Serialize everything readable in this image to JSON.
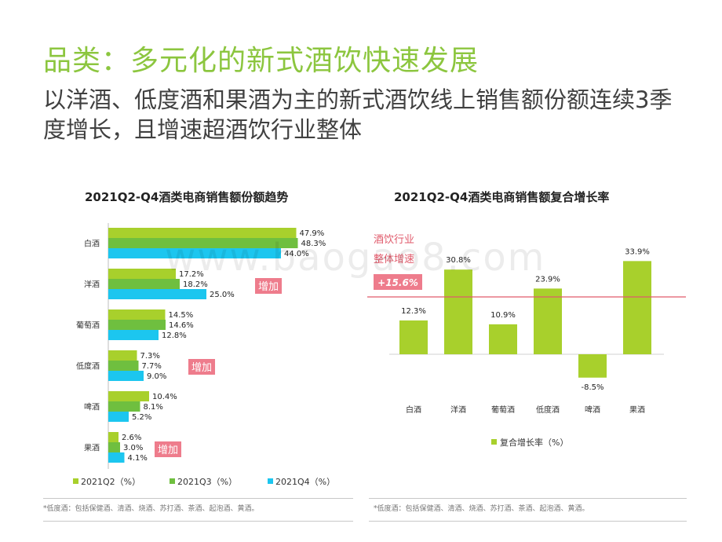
{
  "page": {
    "title": "品类：多元化的新式酒饮快速发展",
    "subtitle": "以洋酒、低度酒和果酒为主的新式酒饮线上销售额份额连续3季度增长，且增速超酒饮行业整体",
    "watermark": "www.baogao8.com"
  },
  "left_chart": {
    "footnote": "*低度酒：包括保健酒、清酒、烧酒、苏打酒、茶酒、起泡酒、黄酒。"
  },
  "right_chart": {
    "footnote": "*低度酒：包括保健酒、清酒、烧酒、苏打酒、茶酒、起泡酒、黄酒。"
  },
  "chart_data": [
    {
      "type": "bar",
      "orientation": "horizontal",
      "title": "2021Q2-Q4酒类电商销售额份额趋势",
      "categories": [
        "白酒",
        "洋酒",
        "葡萄酒",
        "低度酒",
        "啤酒",
        "果酒"
      ],
      "series": [
        {
          "name": "2021Q2（%）",
          "color": "#a8d02c",
          "values": [
            47.9,
            17.2,
            14.5,
            7.3,
            10.4,
            2.6
          ],
          "labels": [
            "47.9%",
            "17.2%",
            "14.5%",
            "7.3%",
            "10.4%",
            "2.6%"
          ]
        },
        {
          "name": "2021Q3（%）",
          "color": "#6fbf3f",
          "values": [
            48.3,
            18.2,
            14.6,
            7.7,
            8.1,
            3.0
          ],
          "labels": [
            "48.3%",
            "18.2%",
            "14.6%",
            "7.7%",
            "8.1%",
            "3.0%"
          ]
        },
        {
          "name": "2021Q4（%）",
          "color": "#1cc6ef",
          "values": [
            44.0,
            25.0,
            12.8,
            9.0,
            5.2,
            4.1
          ],
          "labels": [
            "44.0%",
            "25.0%",
            "12.8%",
            "9.0%",
            "5.2%",
            "4.1%"
          ]
        }
      ],
      "annotations": [
        {
          "category": "洋酒",
          "text": "增加"
        },
        {
          "category": "低度酒",
          "text": "增加"
        },
        {
          "category": "果酒",
          "text": "增加"
        }
      ],
      "legend_position": "bottom",
      "grid": false
    },
    {
      "type": "bar",
      "title": "2021Q2-Q4酒类电商销售额复合增长率",
      "categories": [
        "白酒",
        "洋酒",
        "葡萄酒",
        "低度酒",
        "啤酒",
        "果酒"
      ],
      "series": [
        {
          "name": "复合增长率（%）",
          "color": "#a8d02c",
          "values": [
            12.3,
            30.8,
            10.9,
            23.9,
            -8.5,
            33.9
          ],
          "labels": [
            "12.3%",
            "30.8%",
            "10.9%",
            "23.9%",
            "-8.5%",
            "33.9%"
          ]
        }
      ],
      "reference_line": {
        "value": 15.6,
        "label_lines": [
          "酒饮行业",
          "整体增速"
        ],
        "value_label": "+15.6%",
        "color": "#e05a6b"
      },
      "legend_position": "bottom",
      "grid": false
    }
  ]
}
